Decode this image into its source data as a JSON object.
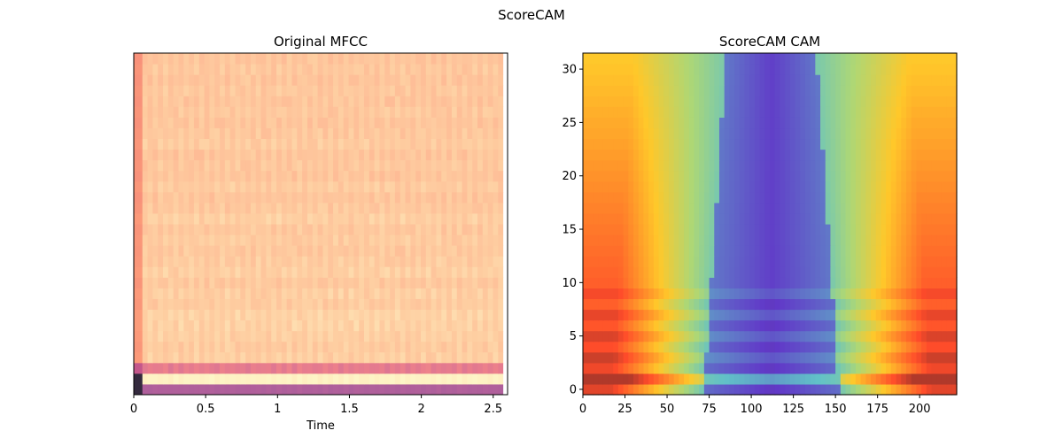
{
  "figure": {
    "suptitle": "ScoreCAM"
  },
  "chart_data": [
    {
      "type": "heatmap",
      "title": "Original MFCC",
      "xlabel": "Time",
      "ylabel": "",
      "xlim": [
        0,
        2.6
      ],
      "xticks": [
        0,
        0.5,
        1,
        1.5,
        2,
        2.5
      ],
      "xtick_labels": [
        "0",
        "0.5",
        "1",
        "1.5",
        "2",
        "2.5"
      ],
      "yticks": [],
      "n_coefficients": 32,
      "data_end_time": 2.57,
      "colormap": "magma",
      "row_levels": [
        0.42,
        0.97,
        0.6,
        0.88,
        0.87,
        0.88,
        0.89,
        0.89,
        0.87,
        0.88,
        0.86,
        0.88,
        0.87,
        0.86,
        0.87,
        0.86,
        0.88,
        0.86,
        0.85,
        0.87,
        0.85,
        0.86,
        0.85,
        0.87,
        0.86,
        0.85,
        0.86,
        0.85,
        0.86,
        0.85,
        0.86,
        0.85
      ]
    },
    {
      "type": "heatmap",
      "title": "ScoreCAM CAM",
      "xlabel": "",
      "ylabel": "",
      "xlim": [
        0,
        222
      ],
      "ylim": [
        -0.5,
        31.5
      ],
      "xticks": [
        0,
        25,
        50,
        75,
        100,
        125,
        150,
        175,
        200
      ],
      "xtick_labels": [
        "0",
        "25",
        "50",
        "75",
        "100",
        "125",
        "150",
        "175",
        "200"
      ],
      "yticks": [
        0,
        5,
        10,
        15,
        20,
        25,
        30
      ],
      "ytick_labels": [
        "0",
        "5",
        "10",
        "15",
        "20",
        "25",
        "30"
      ],
      "colormap": "jet",
      "low_region_center": 112,
      "low_region_halfwidth_bottom": 40,
      "low_region_halfwidth_top": 27
    }
  ]
}
